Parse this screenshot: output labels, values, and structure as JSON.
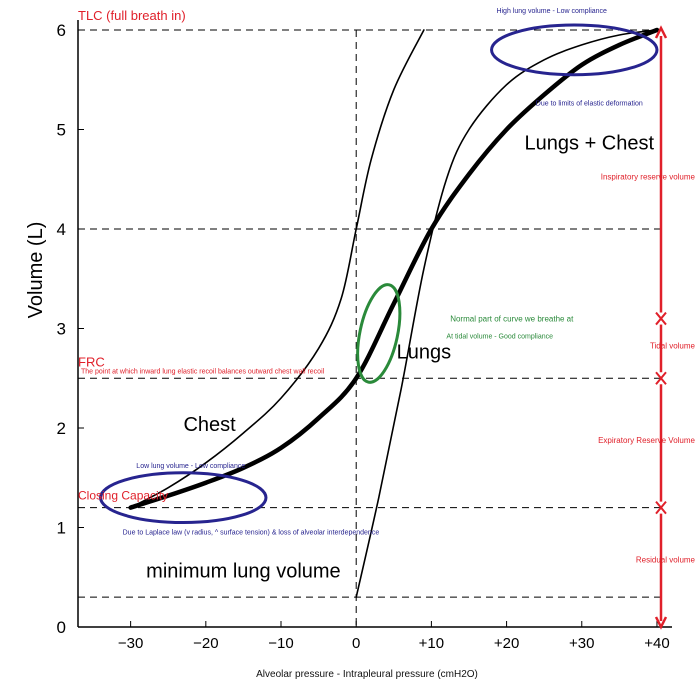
{
  "chart_data": {
    "type": "line",
    "xlabel": "Alveolar pressure - Intrapleural pressure (cmH2O)",
    "ylabel": "Volume (L)",
    "xlim": [
      -37,
      42
    ],
    "ylim": [
      0,
      6
    ],
    "x_ticks": [
      -30,
      -20,
      -10,
      0,
      10,
      20,
      30,
      40
    ],
    "x_tick_labels": [
      "−30",
      "−20",
      "−10",
      "0",
      "+10",
      "+20",
      "+30",
      "+40"
    ],
    "y_ticks": [
      0,
      1,
      2,
      3,
      4,
      5,
      6
    ],
    "y_tick_labels": [
      "0",
      "1",
      "2",
      "3",
      "4",
      "5",
      "6"
    ],
    "grid": false,
    "series": [
      {
        "name": "Lungs + Chest",
        "x": [
          -30,
          -25,
          -20,
          -15,
          -10,
          -5,
          0,
          5,
          10,
          15,
          20,
          25,
          30,
          35,
          40
        ],
        "y": [
          1.2,
          1.32,
          1.45,
          1.6,
          1.8,
          2.1,
          2.5,
          3.25,
          4.0,
          4.55,
          5.0,
          5.35,
          5.65,
          5.85,
          6.0
        ]
      },
      {
        "name": "Chest",
        "x": [
          -30,
          -25,
          -20,
          -15,
          -10,
          -5,
          -2,
          0,
          2,
          5,
          9
        ],
        "y": [
          1.2,
          1.4,
          1.65,
          1.95,
          2.3,
          2.8,
          3.3,
          4.0,
          4.7,
          5.4,
          6.0
        ]
      },
      {
        "name": "Lungs",
        "x": [
          0,
          3,
          6,
          9,
          12,
          15,
          20,
          25,
          30,
          35,
          40
        ],
        "y": [
          0.3,
          1.3,
          2.4,
          3.6,
          4.5,
          5.0,
          5.45,
          5.7,
          5.85,
          5.95,
          6.0
        ]
      }
    ],
    "reference_lines": [
      {
        "orientation": "horizontal",
        "y": 6.0
      },
      {
        "orientation": "horizontal",
        "y": 4.0
      },
      {
        "orientation": "horizontal",
        "y": 2.5
      },
      {
        "orientation": "horizontal",
        "y": 1.2
      },
      {
        "orientation": "horizontal",
        "y": 0.3
      },
      {
        "orientation": "vertical",
        "x": 0
      }
    ],
    "annotations": {
      "tlc": {
        "text": "TLC (full breath in)",
        "x": -37,
        "y": 6.1
      },
      "frc": {
        "text": "FRC",
        "x": -37,
        "y": 2.62
      },
      "frc_note": {
        "text": "The point at which inward lung elastic recoil balances outward chest wall recoil",
        "x": -36.6,
        "y": 2.55
      },
      "closing_capacity": {
        "text": "Closing Capacity",
        "x": -37,
        "y": 1.28
      },
      "high_lung": {
        "text": "High lung volume - Low compliance",
        "x": 26,
        "y": 6.17
      },
      "elastic_limit": {
        "text": "Due to limits of elastic deformation",
        "x": 31,
        "y": 5.24
      },
      "low_lung": {
        "text": "Low lung volume - Low compliance",
        "x": -22,
        "y": 1.6
      },
      "laplace": {
        "text": "Due to Laplace law (v radius, ^ surface tension) & loss of alveolar interdependence",
        "x": -14,
        "y": 0.93
      },
      "normal_part": {
        "text": "Normal part of curve we breathe at",
        "x": 12.5,
        "y": 3.07
      },
      "tidal_note": {
        "text": "At tidal volume - Good compliance",
        "x": 12,
        "y": 2.9
      },
      "lungs_chest_label": {
        "text": "Lungs + Chest",
        "x": 31,
        "y": 4.8
      },
      "lungs_label": {
        "text": "Lungs",
        "x": 9,
        "y": 2.7
      },
      "chest_label": {
        "text": "Chest",
        "x": -19.5,
        "y": 1.97
      },
      "min_lung_volume": {
        "text": "minimum lung volume",
        "x": -15,
        "y": 0.5
      }
    },
    "volume_labels": [
      {
        "text": "Inspiratory reserve volume",
        "y": 4.5
      },
      {
        "text": "Tidal volume",
        "y": 2.8
      },
      {
        "text": "Expiratory Reserve Volume",
        "y": 1.85
      },
      {
        "text": "Residual volume",
        "y": 0.65
      }
    ],
    "volume_markers": [
      6.0,
      3.1,
      2.5,
      1.2,
      0.0
    ],
    "highlight_ellipses": [
      {
        "name": "high-volume-ellipse",
        "cx": 29,
        "cy": 5.8,
        "rx": 11,
        "ry": 0.25,
        "color": "#27248f"
      },
      {
        "name": "low-volume-ellipse",
        "cx": -23,
        "cy": 1.3,
        "rx": 11,
        "ry": 0.25,
        "color": "#27248f"
      },
      {
        "name": "tidal-ellipse",
        "cx": 3,
        "cy": 2.95,
        "rx": 2.5,
        "ry": 0.5,
        "color": "#2a8a3a"
      }
    ],
    "colors": {
      "red": "#e0202a",
      "blue": "#27248f",
      "green": "#2a8a3a",
      "black": "#000000"
    }
  }
}
